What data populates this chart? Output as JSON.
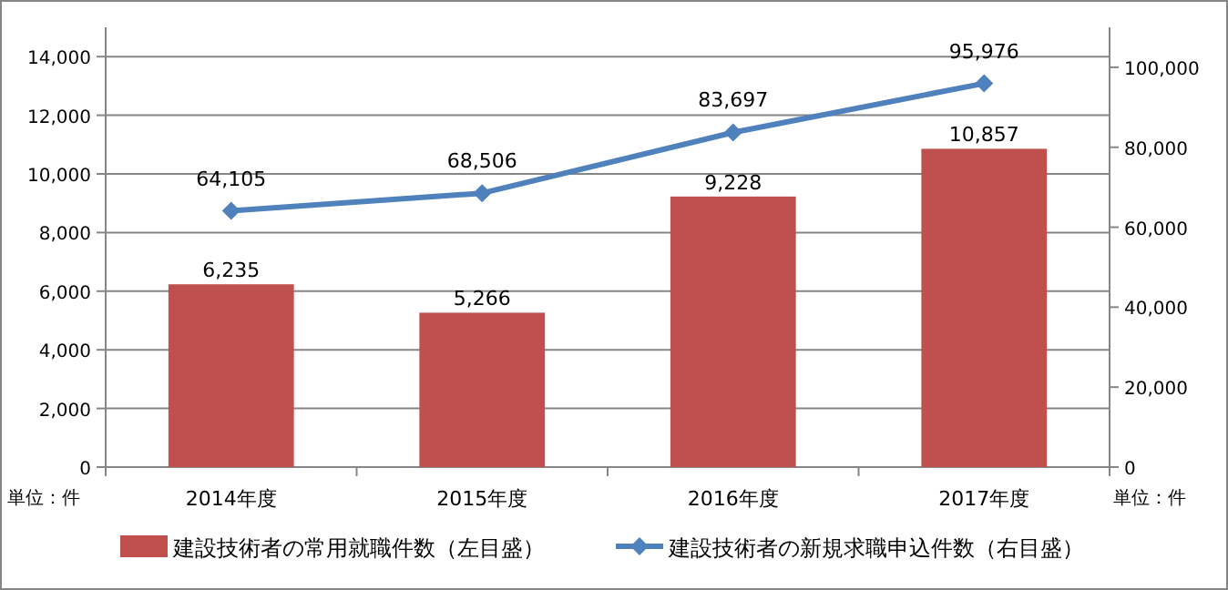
{
  "chart_data": {
    "type": "bar",
    "categories": [
      "2014年度",
      "2015年度",
      "2016年度",
      "2017年度"
    ],
    "series": [
      {
        "name": "建設技術者の常用就職件数（左目盛）",
        "color": "#c0504d",
        "values": [
          6235,
          5266,
          9228,
          10857
        ],
        "value_labels": [
          "6,235",
          "5,266",
          "9,228",
          "10,857"
        ]
      },
      {
        "name": "建設技術者の新規求職申込件数（右目盛）",
        "type": "line",
        "axis": "y2",
        "color": "#4f81bd",
        "marker": "diamond",
        "values": [
          64105,
          68506,
          83697,
          95976
        ],
        "value_labels": [
          "64,105",
          "68,506",
          "83,697",
          "95,976"
        ]
      }
    ],
    "ylim": [
      0,
      15000
    ],
    "yticks": [
      0,
      {
        "value": 2000,
        "label": "2,000"
      },
      {
        "value": 4000,
        "label": "4,000"
      },
      {
        "value": 6000,
        "label": "6,000"
      },
      {
        "value": 8000,
        "label": "8,000"
      },
      {
        "value": 10000,
        "label": "10,000"
      },
      {
        "value": 12000,
        "label": "12,000"
      },
      {
        "value": 14000,
        "label": "14,000"
      }
    ],
    "y2lim": [
      0,
      110000
    ],
    "y2ticks": [
      0,
      {
        "value": 20000,
        "label": "20,000"
      },
      {
        "value": 40000,
        "label": "40,000"
      },
      {
        "value": 60000,
        "label": "60,000"
      },
      {
        "value": 80000,
        "label": "80,000"
      },
      {
        "value": 100000,
        "label": "100,000"
      }
    ],
    "grid": "y",
    "legend": "bottom",
    "annotations": [
      "単位：件",
      "単位：件"
    ]
  }
}
